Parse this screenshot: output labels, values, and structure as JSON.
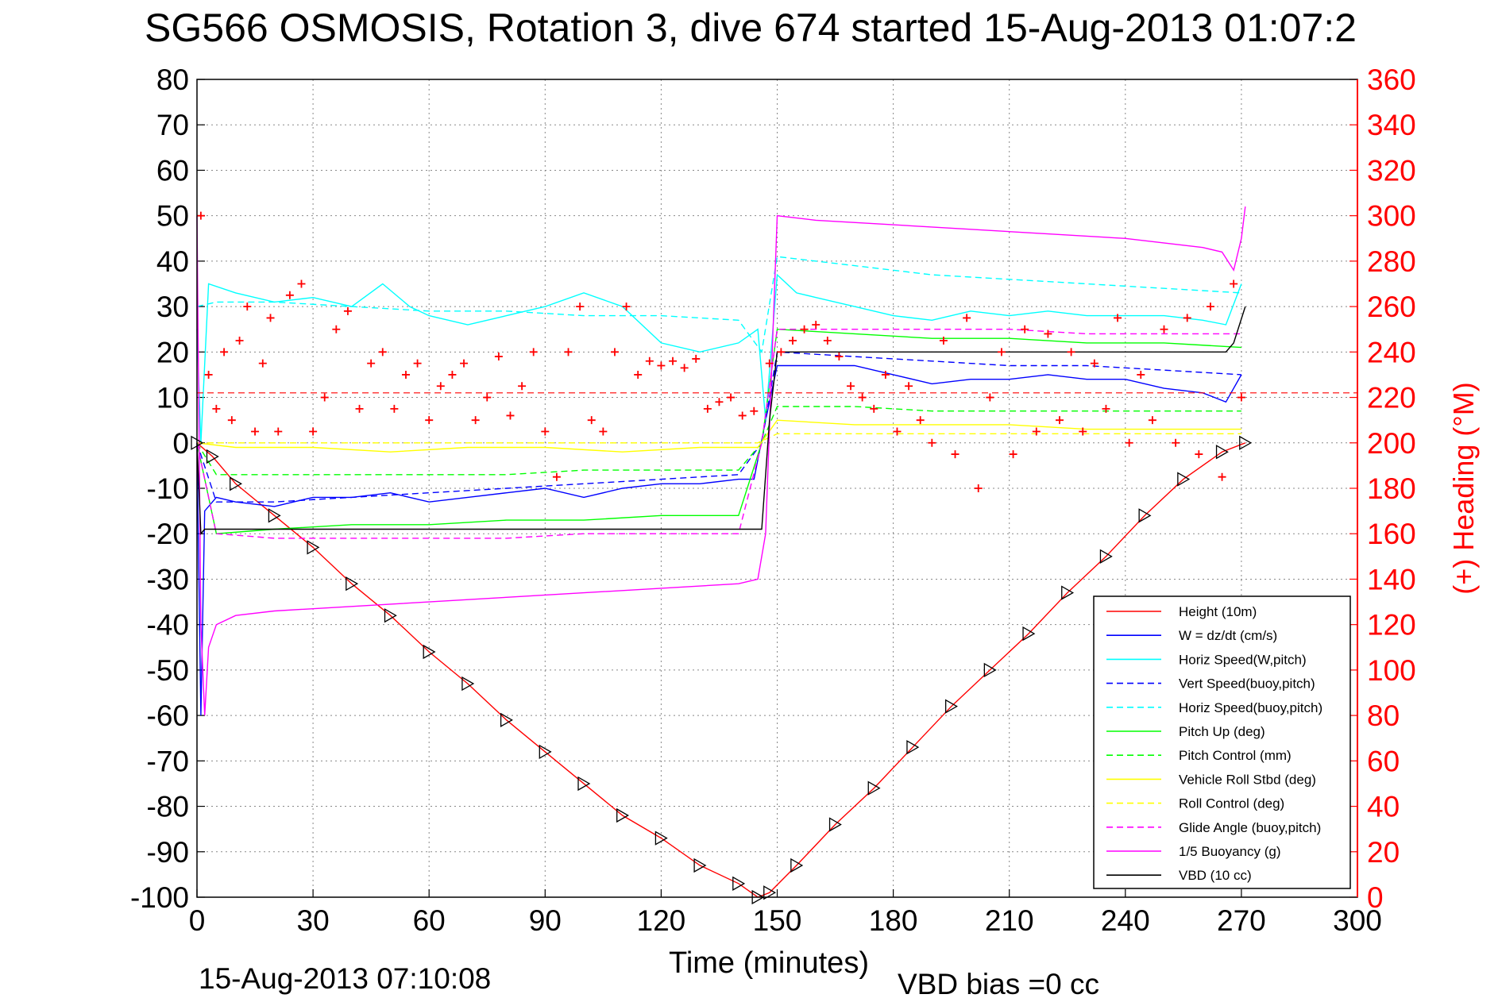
{
  "title": "SG566 OSMOSIS, Rotation 3, dive 674 started 15-Aug-2013 01:07:2",
  "footer": {
    "timestamp": "15-Aug-2013 07:10:08",
    "vbd_bias": "VBD bias =0 cc"
  },
  "chart_data": {
    "type": "line",
    "title": "SG566 OSMOSIS, Rotation 3, dive 674 started 15-Aug-2013 01:07:2",
    "xlabel": "Time (minutes)",
    "ylabel": "",
    "ylabel_right": "(+) Heading (°M)",
    "xlim": [
      0,
      300
    ],
    "ylim": [
      -100,
      80
    ],
    "ylim_right": [
      0,
      360
    ],
    "grid": true,
    "legend_position": "bottom-right",
    "x_ticks": [
      0,
      30,
      60,
      90,
      120,
      150,
      180,
      210,
      240,
      270,
      300
    ],
    "y_ticks": [
      80,
      70,
      60,
      50,
      40,
      30,
      20,
      10,
      0,
      -10,
      -20,
      -30,
      -40,
      -50,
      -60,
      -70,
      -80,
      -90,
      -100
    ],
    "y_ticks_right": [
      360,
      340,
      320,
      300,
      280,
      260,
      240,
      220,
      200,
      180,
      160,
      140,
      120,
      100,
      80,
      60,
      40,
      20,
      0
    ],
    "series": [
      {
        "name": "Height (10m)",
        "color": "#ff0000",
        "style": "solid",
        "marker": "triangle",
        "x": [
          0,
          4,
          10,
          20,
          30,
          40,
          50,
          60,
          70,
          80,
          90,
          100,
          110,
          120,
          130,
          140,
          145,
          148,
          155,
          165,
          175,
          185,
          195,
          205,
          215,
          225,
          235,
          245,
          255,
          265,
          271
        ],
        "y": [
          0,
          -3,
          -9,
          -16,
          -23,
          -31,
          -38,
          -46,
          -53,
          -61,
          -68,
          -75,
          -82,
          -87,
          -93,
          -97,
          -100,
          -99,
          -93,
          -84,
          -76,
          -67,
          -58,
          -50,
          -42,
          -33,
          -25,
          -16,
          -8,
          -2,
          0
        ]
      },
      {
        "name": "W = dz/dt (cm/s)",
        "color": "#0000ff",
        "style": "solid",
        "x": [
          0,
          1,
          2,
          5,
          10,
          20,
          30,
          40,
          50,
          60,
          70,
          80,
          90,
          100,
          110,
          120,
          130,
          140,
          144,
          147,
          150,
          160,
          170,
          180,
          190,
          200,
          210,
          220,
          230,
          240,
          250,
          260,
          266,
          270
        ],
        "y": [
          0,
          -60,
          -15,
          -12,
          -13,
          -14,
          -12,
          -12,
          -11,
          -13,
          -12,
          -11,
          -10,
          -12,
          -10,
          -9,
          -9,
          -8,
          -8,
          5,
          17,
          17,
          17,
          15,
          13,
          14,
          14,
          15,
          14,
          14,
          12,
          11,
          9,
          15
        ]
      },
      {
        "name": "Horiz Speed(W,pitch)",
        "color": "#00ffff",
        "style": "solid",
        "x": [
          0,
          1,
          3,
          10,
          20,
          30,
          40,
          48,
          55,
          60,
          70,
          80,
          90,
          100,
          110,
          120,
          130,
          140,
          145,
          147,
          150,
          155,
          160,
          170,
          180,
          190,
          200,
          210,
          220,
          230,
          240,
          250,
          260,
          266,
          270
        ],
        "y": [
          25,
          0,
          35,
          33,
          31,
          32,
          30,
          35,
          30,
          28,
          26,
          28,
          30,
          33,
          30,
          22,
          20,
          22,
          25,
          5,
          37,
          33,
          32,
          30,
          28,
          27,
          29,
          28,
          29,
          28,
          28,
          28,
          27,
          26,
          35
        ]
      },
      {
        "name": "Vert Speed(buoy,pitch)",
        "color": "#0000ff",
        "style": "dashed",
        "x": [
          0,
          5,
          20,
          40,
          60,
          80,
          100,
          120,
          140,
          146,
          150,
          170,
          190,
          210,
          230,
          250,
          270
        ],
        "y": [
          0,
          -13,
          -13,
          -12,
          -11,
          -10,
          -9,
          -8,
          -7,
          0,
          20,
          19,
          18,
          17,
          17,
          16,
          15
        ]
      },
      {
        "name": "Horiz Speed(buoy,pitch)",
        "color": "#00ffff",
        "style": "dashed",
        "x": [
          0,
          5,
          20,
          40,
          60,
          80,
          100,
          120,
          140,
          146,
          150,
          170,
          190,
          210,
          230,
          250,
          270
        ],
        "y": [
          30,
          31,
          31,
          30,
          29,
          29,
          28,
          28,
          27,
          20,
          41,
          39,
          37,
          36,
          35,
          34,
          33
        ]
      },
      {
        "name": "Pitch Up (deg)",
        "color": "#00ff00",
        "style": "solid",
        "x": [
          0,
          5,
          20,
          40,
          60,
          80,
          100,
          120,
          140,
          146,
          150,
          170,
          190,
          210,
          230,
          250,
          270
        ],
        "y": [
          0,
          -20,
          -19,
          -18,
          -18,
          -17,
          -17,
          -16,
          -16,
          0,
          25,
          24,
          23,
          23,
          22,
          22,
          21
        ]
      },
      {
        "name": "Pitch Control (mm)",
        "color": "#00ff00",
        "style": "dashed",
        "x": [
          0,
          5,
          20,
          40,
          60,
          80,
          100,
          120,
          140,
          146,
          150,
          170,
          190,
          210,
          230,
          250,
          270
        ],
        "y": [
          0,
          -7,
          -7,
          -7,
          -7,
          -7,
          -6,
          -6,
          -6,
          0,
          8,
          8,
          7,
          7,
          7,
          7,
          7
        ]
      },
      {
        "name": "Vehicle Roll Stbd (deg)",
        "color": "#ffff00",
        "style": "solid",
        "x": [
          0,
          10,
          30,
          50,
          70,
          90,
          110,
          130,
          145,
          150,
          170,
          190,
          210,
          230,
          250,
          270
        ],
        "y": [
          0,
          -1,
          -1,
          -2,
          -1,
          -1,
          -2,
          -1,
          -1,
          5,
          4,
          4,
          4,
          3,
          3,
          3
        ]
      },
      {
        "name": "Roll Control (deg)",
        "color": "#ffff00",
        "style": "dashed",
        "x": [
          0,
          10,
          30,
          50,
          70,
          90,
          110,
          130,
          145,
          150,
          170,
          190,
          210,
          230,
          250,
          270
        ],
        "y": [
          0,
          0,
          0,
          0,
          0,
          0,
          0,
          0,
          0,
          2,
          2,
          2,
          2,
          2,
          2,
          2
        ]
      },
      {
        "name": "Glide Angle (buoy,pitch)",
        "color": "#ff00ff",
        "style": "dashed",
        "x": [
          0,
          5,
          20,
          40,
          60,
          80,
          100,
          120,
          140,
          146,
          150,
          170,
          190,
          210,
          230,
          250,
          270
        ],
        "y": [
          0,
          -20,
          -21,
          -21,
          -21,
          -21,
          -20,
          -20,
          -20,
          0,
          25,
          25,
          25,
          25,
          24,
          24,
          24
        ]
      },
      {
        "name": "1/5 Buoyancy (g)",
        "color": "#ff00ff",
        "style": "solid",
        "x": [
          0,
          1,
          2,
          3,
          5,
          10,
          20,
          40,
          60,
          80,
          100,
          120,
          140,
          145,
          147,
          150,
          160,
          180,
          200,
          220,
          240,
          260,
          265,
          268,
          270,
          271
        ],
        "y": [
          50,
          -40,
          -60,
          -45,
          -40,
          -38,
          -37,
          -36,
          -35,
          -34,
          -33,
          -32,
          -31,
          -30,
          -20,
          50,
          49,
          48,
          47,
          46,
          45,
          43,
          42,
          38,
          45,
          52
        ]
      },
      {
        "name": "VBD (10 cc)",
        "color": "#000000",
        "style": "solid",
        "x": [
          0,
          1,
          2,
          10,
          50,
          100,
          144,
          146,
          148,
          150,
          200,
          266,
          268,
          271
        ],
        "y": [
          0,
          -20,
          -19,
          -19,
          -19,
          -19,
          -19,
          -19,
          5,
          20,
          20,
          20,
          22,
          30
        ]
      }
    ],
    "heading": {
      "name": "(+) Heading (°M)",
      "axis": "right",
      "color": "#ff0000",
      "marker": "plus",
      "mean": 222,
      "x": [
        1,
        3,
        5,
        7,
        9,
        11,
        13,
        15,
        17,
        19,
        21,
        24,
        27,
        30,
        33,
        36,
        39,
        42,
        45,
        48,
        51,
        54,
        57,
        60,
        63,
        66,
        69,
        72,
        75,
        78,
        81,
        84,
        87,
        90,
        93,
        96,
        99,
        102,
        105,
        108,
        111,
        114,
        117,
        120,
        123,
        126,
        129,
        132,
        135,
        138,
        141,
        144,
        148,
        151,
        154,
        157,
        160,
        163,
        166,
        169,
        172,
        175,
        178,
        181,
        184,
        187,
        190,
        193,
        196,
        199,
        202,
        205,
        208,
        211,
        214,
        217,
        220,
        223,
        226,
        229,
        232,
        235,
        238,
        241,
        244,
        247,
        250,
        253,
        256,
        259,
        262,
        265,
        268,
        270
      ],
      "y": [
        300,
        230,
        215,
        240,
        210,
        245,
        260,
        205,
        235,
        255,
        205,
        265,
        270,
        205,
        220,
        250,
        258,
        215,
        235,
        240,
        215,
        230,
        235,
        210,
        225,
        230,
        235,
        210,
        220,
        238,
        212,
        225,
        240,
        205,
        185,
        240,
        260,
        210,
        205,
        240,
        260,
        230,
        236,
        234,
        236,
        233,
        237,
        215,
        218,
        220,
        212,
        214,
        235,
        240,
        245,
        250,
        252,
        245,
        238,
        225,
        220,
        215,
        230,
        205,
        225,
        210,
        200,
        245,
        195,
        255,
        180,
        220,
        240,
        195,
        250,
        205,
        248,
        210,
        240,
        205,
        235,
        215,
        255,
        200,
        230,
        210,
        250,
        200,
        255,
        195,
        260,
        185,
        270,
        220
      ]
    }
  },
  "legend": [
    {
      "label": "Height (10m)",
      "color": "#ff0000",
      "style": "solid"
    },
    {
      "label": "W = dz/dt (cm/s)",
      "color": "#0000ff",
      "style": "solid"
    },
    {
      "label": "Horiz Speed(W,pitch)",
      "color": "#00ffff",
      "style": "solid"
    },
    {
      "label": "Vert Speed(buoy,pitch)",
      "color": "#0000ff",
      "style": "dashed"
    },
    {
      "label": "Horiz Speed(buoy,pitch)",
      "color": "#00ffff",
      "style": "dashed"
    },
    {
      "label": "Pitch Up (deg)",
      "color": "#00ff00",
      "style": "solid"
    },
    {
      "label": "Pitch Control (mm)",
      "color": "#00ff00",
      "style": "dashed"
    },
    {
      "label": "Vehicle Roll Stbd (deg)",
      "color": "#ffff00",
      "style": "solid"
    },
    {
      "label": "Roll Control (deg)",
      "color": "#ffff00",
      "style": "dashed"
    },
    {
      "label": "Glide Angle (buoy,pitch)",
      "color": "#ff00ff",
      "style": "dashed"
    },
    {
      "label": "1/5 Buoyancy (g)",
      "color": "#ff00ff",
      "style": "solid"
    },
    {
      "label": "VBD (10 cc)",
      "color": "#000000",
      "style": "solid"
    }
  ]
}
